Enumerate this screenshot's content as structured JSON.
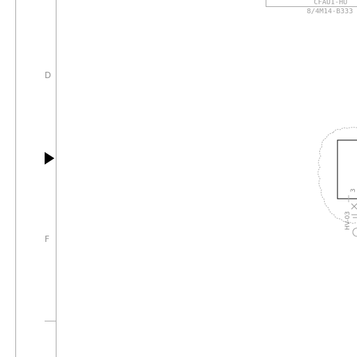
{
  "sheet": {
    "zones": {
      "d_label": "D",
      "f_label": "F"
    },
    "title_block": {
      "tag_line_1": "CFAU1-HU",
      "tag_line_2": "8/4M14-B333"
    },
    "detail": {
      "valve_label": "HV-03",
      "small_mark": "3"
    },
    "colors": {
      "line": "#a9a9a9",
      "text": "#909090",
      "marker": "#000000"
    }
  }
}
